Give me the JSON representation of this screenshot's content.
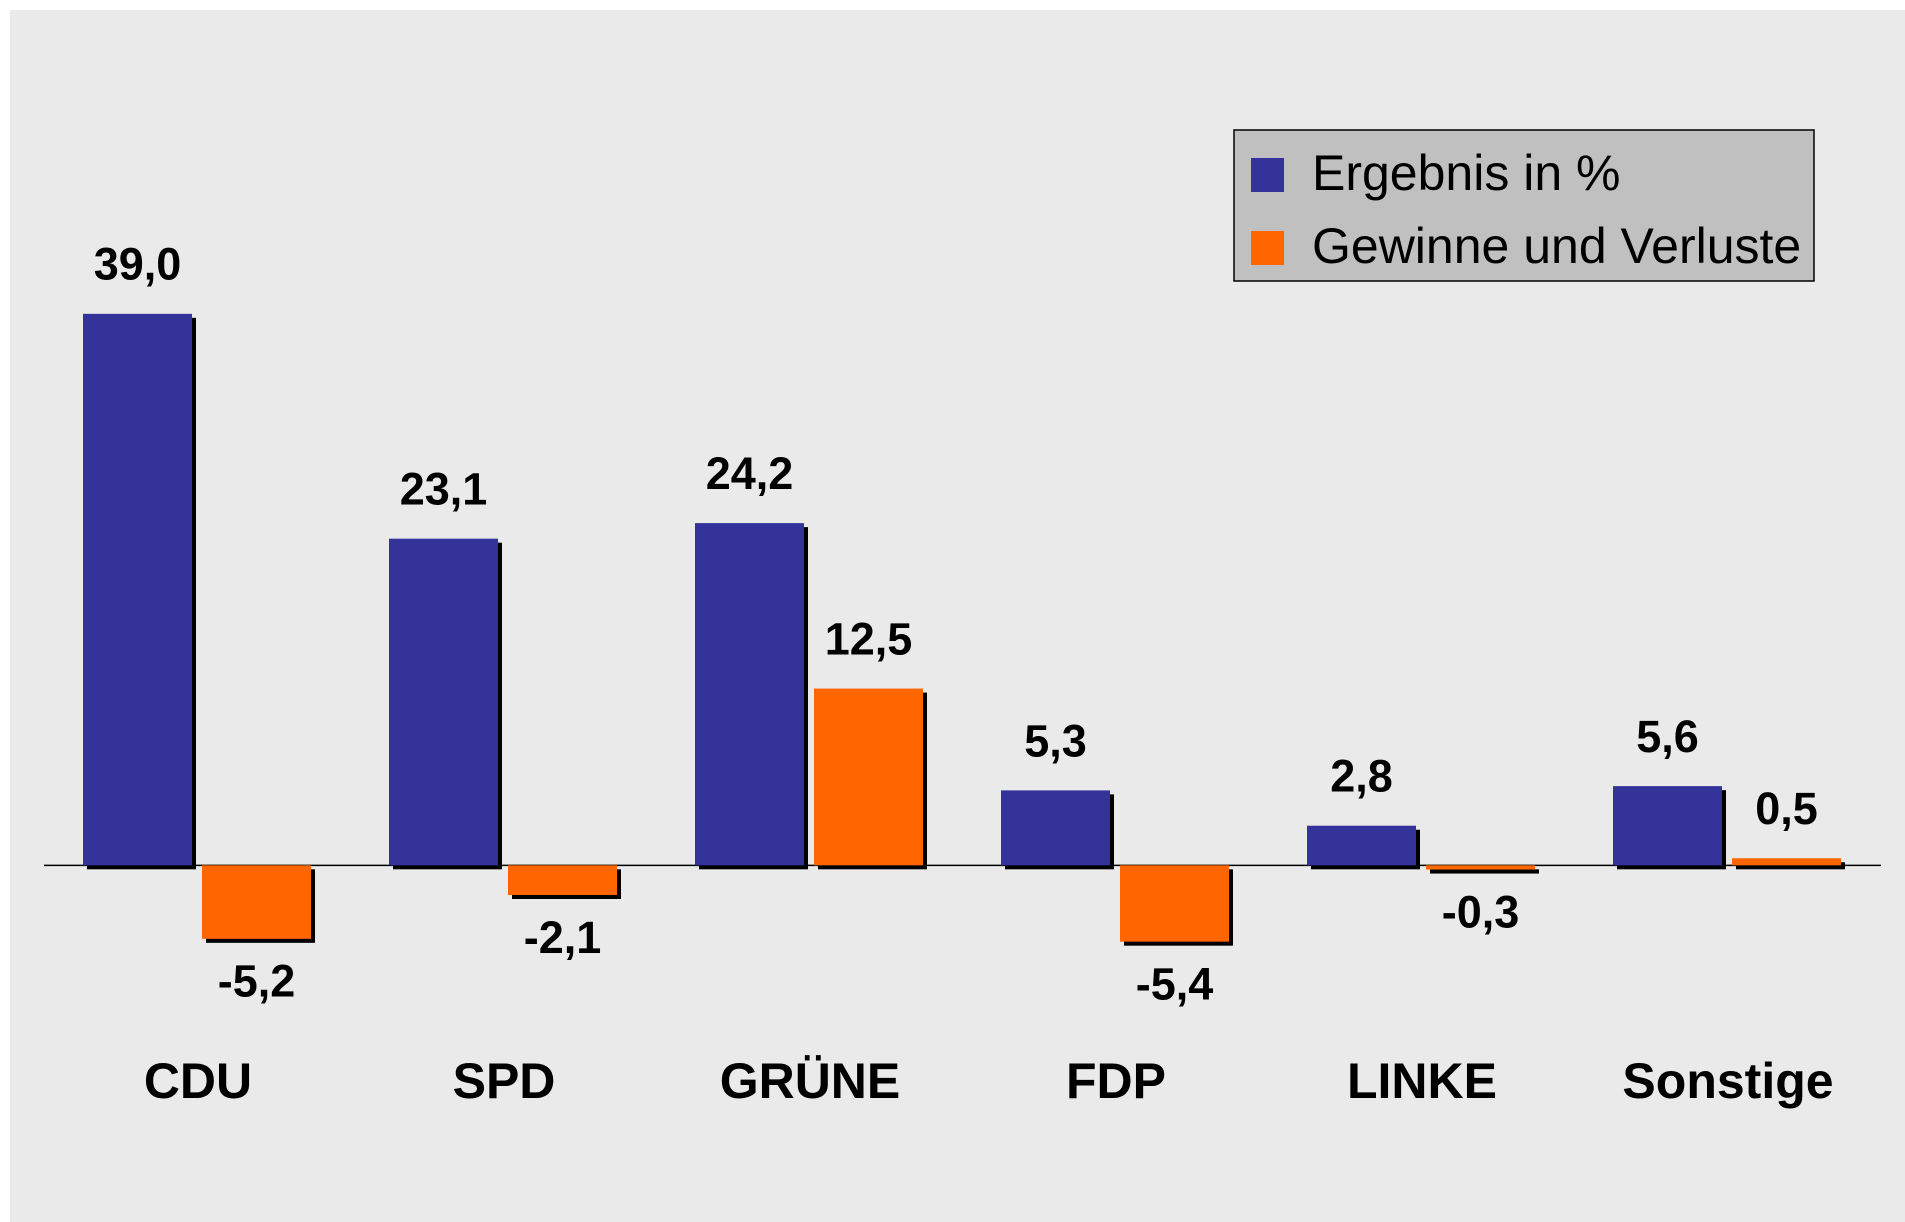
{
  "chart_data": {
    "type": "bar",
    "categories": [
      "CDU",
      "SPD",
      "GRÜNE",
      "FDP",
      "LINKE",
      "Sonstige"
    ],
    "series": [
      {
        "name": "Ergebnis in %",
        "color": "#333399",
        "values": [
          39.0,
          23.1,
          24.2,
          5.3,
          2.8,
          5.6
        ],
        "value_labels": [
          "39,0",
          "23,1",
          "24,2",
          "5,3",
          "2,8",
          "5,6"
        ]
      },
      {
        "name": "Gewinne und Verluste",
        "color": "#ff6600",
        "values": [
          -5.2,
          -2.1,
          12.5,
          -5.4,
          -0.3,
          0.5
        ],
        "value_labels": [
          "-5,2",
          "-2,1",
          "12,5",
          "-5,4",
          "-0,3",
          "0,5"
        ]
      }
    ],
    "ylim": [
      -12,
      45
    ],
    "legend": "upper right"
  }
}
